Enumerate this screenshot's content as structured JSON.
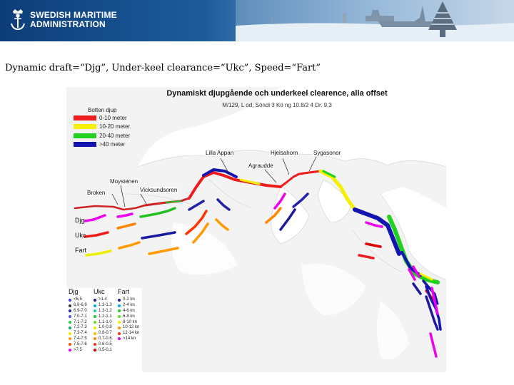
{
  "banner": {
    "org_line1": "SWEDISH MARITIME",
    "org_line2": "ADMINISTRATION",
    "logo_icon": "anchor-crown-icon",
    "colors": {
      "dark": "#0d3d78",
      "light": "#cfdcea"
    }
  },
  "caption": "Dynamic draft=“Djg”, Under-keel clearance=“Ukc”, Speed=“Fart”",
  "map": {
    "title": "Dynamiskt djupgående och underkeel clearence, alla offset",
    "subtitle": "M/129, L od, Söndi 3 Kö ng 10.8/2 4 Dr. 9,3",
    "depth_legend": {
      "title": "Botten djup",
      "items": [
        {
          "label": "0-10 meter",
          "color": "#ee1c1c"
        },
        {
          "label": "10-20 meter",
          "color": "#f4f000"
        },
        {
          "label": "20-40 meter",
          "color": "#22d020"
        },
        {
          "label": ">40 meter",
          "color": "#1414b0"
        }
      ]
    },
    "places": {
      "lilla_appan": "Lilla Appan",
      "hjelsahorn": "Hjelsahorn",
      "sygasonor": "Sygasonor",
      "agraudde": "Agraudde",
      "moystenen": "Moystenen",
      "broken": "Broken",
      "vicksundsoren": "Vicksundsoren"
    },
    "row_labels": {
      "djg": "Djg",
      "ukc": "Ukc",
      "fart": "Fart"
    },
    "bottom_legend": {
      "djg": {
        "title": "Djg",
        "items": [
          {
            "label": "<6,5",
            "color": "#3a3ad8"
          },
          {
            "label": "6.8-6,9",
            "color": "#333333"
          },
          {
            "label": "6.9-7.0",
            "color": "#2222aa"
          },
          {
            "label": "7.0-7.1",
            "color": "#5555dd"
          },
          {
            "label": "7.1-7.2",
            "color": "#22cc44"
          },
          {
            "label": "7.2-7.3",
            "color": "#11aa66"
          },
          {
            "label": "7.3-7.4",
            "color": "#eeee00"
          },
          {
            "label": "7.4-7.5",
            "color": "#ff9922"
          },
          {
            "label": "7.5-7.6",
            "color": "#ff5500"
          },
          {
            "label": ">7,5",
            "color": "#ee00ee"
          }
        ]
      },
      "ukc": {
        "title": "Ukc",
        "items": [
          {
            "label": ">1.4",
            "color": "#1a1aa0"
          },
          {
            "label": "1.3-1.3",
            "color": "#00aaee"
          },
          {
            "label": "1.3-1.2",
            "color": "#22ccaa"
          },
          {
            "label": "1.2-1.1",
            "color": "#22cc22"
          },
          {
            "label": "1.1-1.0",
            "color": "#66dd22"
          },
          {
            "label": "1.0-0.9",
            "color": "#eeee00"
          },
          {
            "label": "0.8-0.7",
            "color": "#ffbb00"
          },
          {
            "label": "0.7-0.6",
            "color": "#ff8800"
          },
          {
            "label": "0.6-0.5",
            "color": "#ff3300"
          },
          {
            "label": "0.5-0.1",
            "color": "#dd0000"
          }
        ]
      },
      "fart": {
        "title": "Fart",
        "items": [
          {
            "label": "0-2 kn",
            "color": "#1a1aa0"
          },
          {
            "label": "2-4 kn",
            "color": "#00aaee"
          },
          {
            "label": "4-6 kn",
            "color": "#22cc22"
          },
          {
            "label": "6-8 kn",
            "color": "#66dd22"
          },
          {
            "label": "8-10 kn",
            "color": "#eeee00"
          },
          {
            "label": "10-12 kn",
            "color": "#ff9900"
          },
          {
            "label": "12-14 kn",
            "color": "#ff3300"
          },
          {
            "label": ">14 kn",
            "color": "#dd00dd"
          }
        ]
      }
    }
  }
}
